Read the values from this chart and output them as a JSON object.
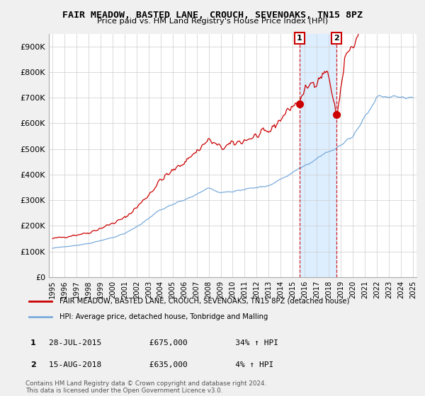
{
  "title": "FAIR MEADOW, BASTED LANE, CROUCH, SEVENOAKS, TN15 8PZ",
  "subtitle": "Price paid vs. HM Land Registry's House Price Index (HPI)",
  "ylim": [
    0,
    950000
  ],
  "yticks": [
    0,
    100000,
    200000,
    300000,
    400000,
    500000,
    600000,
    700000,
    800000,
    900000
  ],
  "ytick_labels": [
    "£0",
    "£100K",
    "£200K",
    "£300K",
    "£400K",
    "£500K",
    "£600K",
    "£700K",
    "£800K",
    "£900K"
  ],
  "legend_line1": "FAIR MEADOW, BASTED LANE, CROUCH, SEVENOAKS, TN15 8PZ (detached house)",
  "legend_line2": "HPI: Average price, detached house, Tonbridge and Malling",
  "ann1_label": "1",
  "ann1_date": "28-JUL-2015",
  "ann1_price": "£675,000",
  "ann1_hpi": "34% ↑ HPI",
  "ann1_x": 2015.57,
  "ann1_y": 675000,
  "ann2_label": "2",
  "ann2_date": "15-AUG-2018",
  "ann2_price": "£635,000",
  "ann2_hpi": "4% ↑ HPI",
  "ann2_x": 2018.62,
  "ann2_y": 635000,
  "footer": "Contains HM Land Registry data © Crown copyright and database right 2024.\nThis data is licensed under the Open Government Licence v3.0.",
  "red_color": "#cc0000",
  "blue_color": "#7aabdc",
  "fill_color": "#ddeeff",
  "bg_color": "#f0f0f0",
  "plot_bg": "#ffffff",
  "xlim_left": 1994.7,
  "xlim_right": 2025.3
}
